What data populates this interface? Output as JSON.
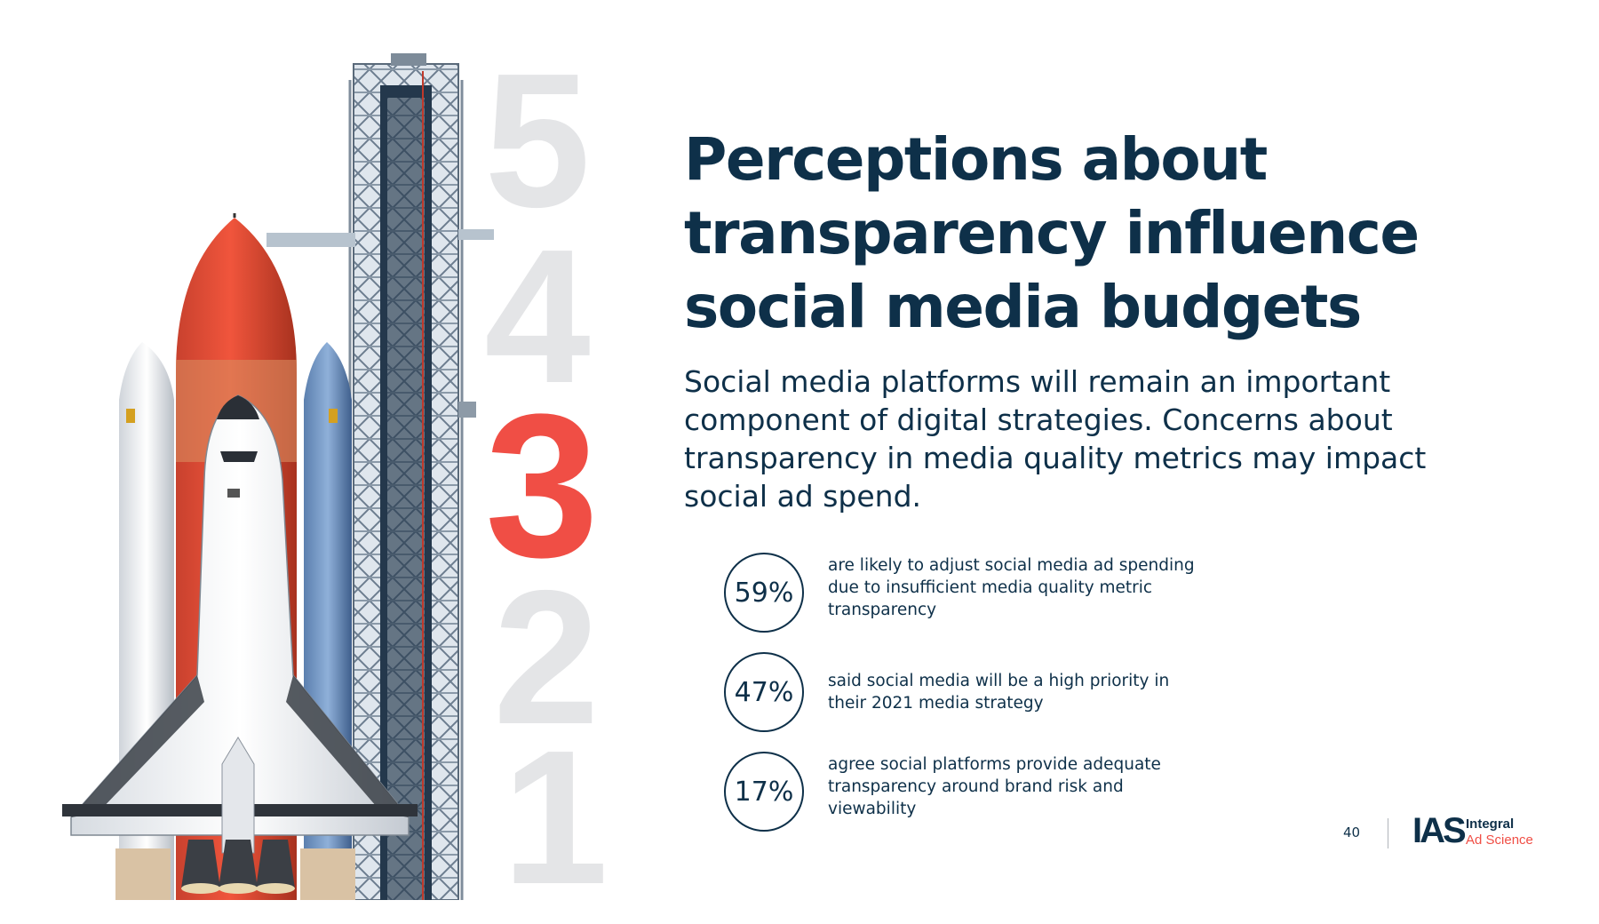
{
  "countdown": {
    "d5": "5",
    "d4": "4",
    "d3": "3",
    "d2": "2",
    "d1": "1"
  },
  "headline": "Perceptions about transparency influence social media budgets",
  "intro": "Social media platforms will remain an important component of digital strategies. Concerns about transparency in media quality metrics may impact social ad spend.",
  "stats": [
    {
      "value": "59%",
      "text": "are likely to adjust social media ad spending due to insufficient media quality metric transparency"
    },
    {
      "value": "47%",
      "text": "said social media will be a high priority in their 2021 media strategy"
    },
    {
      "value": "17%",
      "text": "agree social platforms provide adequate transparency around brand risk and viewability"
    }
  ],
  "footer": {
    "page_number": "40",
    "logo_mark": "IAS",
    "logo_line1": "Integral",
    "logo_line2": "Ad Science"
  },
  "colors": {
    "navy": "#0e3049",
    "accent": "#f04e45",
    "numeral_gray": "#e4e5e7"
  }
}
